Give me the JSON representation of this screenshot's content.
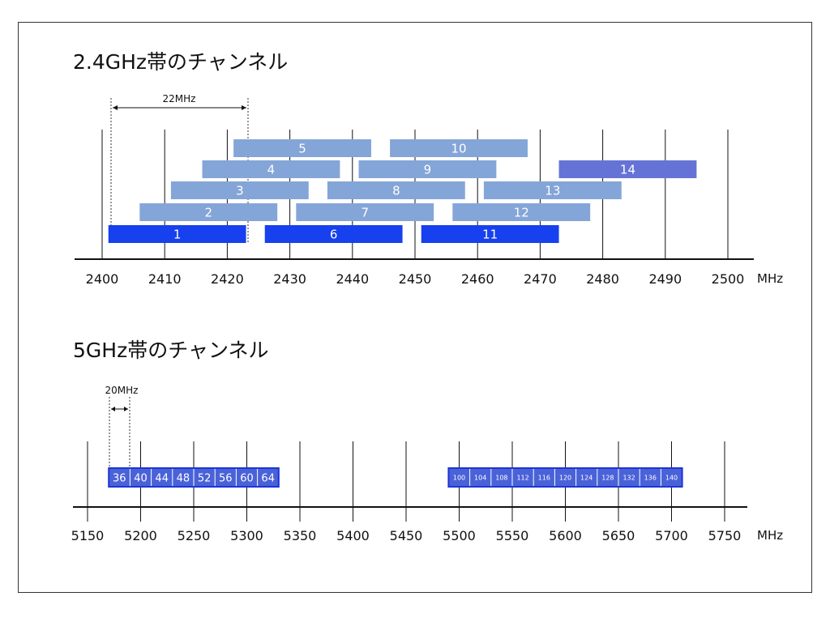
{
  "band24": {
    "title": "2.4GHz帯のチャンネル",
    "unit": "MHz",
    "width_label": "22MHz",
    "ticks": [
      "2400",
      "2410",
      "2420",
      "2430",
      "2440",
      "2450",
      "2460",
      "2470",
      "2480",
      "2490",
      "2500"
    ],
    "tick_values": [
      2400,
      2410,
      2420,
      2430,
      2440,
      2450,
      2460,
      2470,
      2480,
      2490,
      2500
    ],
    "channels": [
      {
        "label": "1",
        "center": 2412,
        "row": 0,
        "style": "primary"
      },
      {
        "label": "2",
        "center": 2417,
        "row": 1,
        "style": "secondary"
      },
      {
        "label": "3",
        "center": 2422,
        "row": 2,
        "style": "secondary"
      },
      {
        "label": "4",
        "center": 2427,
        "row": 3,
        "style": "secondary"
      },
      {
        "label": "5",
        "center": 2432,
        "row": 4,
        "style": "secondary"
      },
      {
        "label": "6",
        "center": 2437,
        "row": 0,
        "style": "primary"
      },
      {
        "label": "7",
        "center": 2442,
        "row": 1,
        "style": "secondary"
      },
      {
        "label": "8",
        "center": 2447,
        "row": 2,
        "style": "secondary"
      },
      {
        "label": "9",
        "center": 2452,
        "row": 3,
        "style": "secondary"
      },
      {
        "label": "10",
        "center": 2457,
        "row": 4,
        "style": "secondary"
      },
      {
        "label": "11",
        "center": 2462,
        "row": 0,
        "style": "primary"
      },
      {
        "label": "12",
        "center": 2467,
        "row": 1,
        "style": "secondary"
      },
      {
        "label": "13",
        "center": 2472,
        "row": 2,
        "style": "secondary"
      },
      {
        "label": "14",
        "center": 2484,
        "row": 3,
        "style": "special"
      }
    ],
    "channel_width": 22
  },
  "band5": {
    "title": "5GHz帯のチャンネル",
    "unit": "MHz",
    "width_label": "20MHz",
    "ticks": [
      "5150",
      "5200",
      "5250",
      "5300",
      "5350",
      "5400",
      "5450",
      "5500",
      "5550",
      "5600",
      "5650",
      "5700",
      "5750"
    ],
    "tick_values": [
      5150,
      5200,
      5250,
      5300,
      5350,
      5400,
      5450,
      5500,
      5550,
      5600,
      5650,
      5700,
      5750
    ],
    "channels_low": [
      "36",
      "40",
      "44",
      "48",
      "52",
      "56",
      "60",
      "64"
    ],
    "channels_high": [
      "100",
      "104",
      "108",
      "112",
      "116",
      "120",
      "124",
      "128",
      "132",
      "136",
      "140"
    ],
    "low_start": 5170,
    "high_start": 5490,
    "channel_width": 20
  },
  "colors": {
    "primary": "#1740ee",
    "secondary": "#84a5d7",
    "special": "#6673d6",
    "band5": "#4a62d8",
    "band5_border": "#1d35d8"
  }
}
